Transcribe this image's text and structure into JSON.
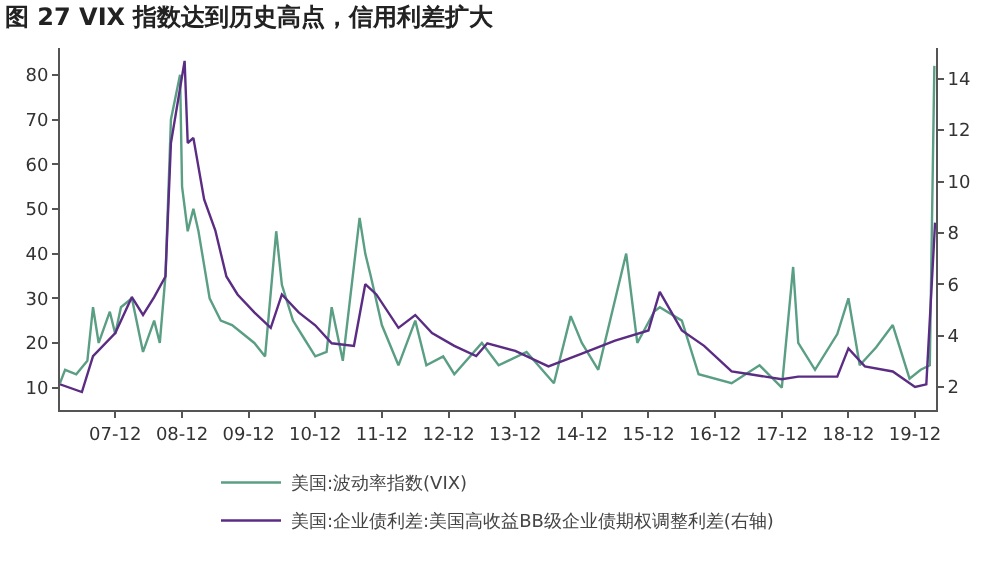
{
  "chart_data": {
    "type": "line",
    "title": "图 27 VIX 指数达到历史高点，信用利差扩大",
    "xlim": [
      "2007-02-01",
      "2020-03-25"
    ],
    "xticks": [
      {
        "value": "2007-12",
        "label": "07-12"
      },
      {
        "value": "2008-12",
        "label": "08-12"
      },
      {
        "value": "2009-12",
        "label": "09-12"
      },
      {
        "value": "2010-12",
        "label": "10-12"
      },
      {
        "value": "2011-12",
        "label": "11-12"
      },
      {
        "value": "2012-12",
        "label": "12-12"
      },
      {
        "value": "2013-12",
        "label": "13-12"
      },
      {
        "value": "2014-12",
        "label": "14-12"
      },
      {
        "value": "2015-12",
        "label": "15-12"
      },
      {
        "value": "2016-12",
        "label": "16-12"
      },
      {
        "value": "2017-12",
        "label": "17-12"
      },
      {
        "value": "2018-12",
        "label": "18-12"
      },
      {
        "value": "2019-12",
        "label": "19-12"
      }
    ],
    "ylim": [
      5,
      86
    ],
    "yticks": [
      10,
      20,
      30,
      40,
      50,
      60,
      70,
      80
    ],
    "y2lim": [
      1.1,
      15.2
    ],
    "y2ticks": [
      2,
      4,
      6,
      8,
      10,
      12,
      14
    ],
    "grid": false,
    "legend": "bottom",
    "marker": "none",
    "line_style": "solid",
    "series": [
      {
        "name": "美国:波动率指数(VIX)",
        "color": "#5a9e84",
        "x": [
          "2007-02",
          "2007-03",
          "2007-05",
          "2007-07",
          "2007-08",
          "2007-09",
          "2007-11",
          "2007-12",
          "2008-01",
          "2008-03",
          "2008-05",
          "2008-07",
          "2008-08",
          "2008-09",
          "2008-10",
          "2008-11-20",
          "2008-12",
          "2009-01",
          "2009-02",
          "2009-03",
          "2009-05",
          "2009-07",
          "2009-09",
          "2009-11",
          "2010-01",
          "2010-03",
          "2010-05",
          "2010-06",
          "2010-08",
          "2010-10",
          "2010-12",
          "2011-02",
          "2011-03",
          "2011-05",
          "2011-08",
          "2011-09",
          "2011-10",
          "2011-12",
          "2012-03",
          "2012-06",
          "2012-08",
          "2012-11",
          "2013-01",
          "2013-06",
          "2013-09",
          "2014-02",
          "2014-07",
          "2014-10",
          "2014-12",
          "2015-03",
          "2015-08",
          "2015-10",
          "2016-01",
          "2016-02",
          "2016-06",
          "2016-09",
          "2017-03",
          "2017-08",
          "2017-12",
          "2018-02",
          "2018-03",
          "2018-06",
          "2018-10",
          "2018-12",
          "2019-02",
          "2019-05",
          "2019-08",
          "2019-11",
          "2020-01",
          "2020-02-20",
          "2020-03-16"
        ],
        "values": [
          11,
          14,
          13,
          16,
          28,
          20,
          27,
          22,
          28,
          30,
          18,
          25,
          20,
          35,
          70,
          80,
          55,
          45,
          50,
          45,
          30,
          25,
          24,
          22,
          20,
          17,
          45,
          33,
          25,
          21,
          17,
          18,
          28,
          16,
          48,
          40,
          35,
          24,
          15,
          25,
          15,
          17,
          13,
          20,
          15,
          18,
          11,
          26,
          20,
          14,
          40,
          20,
          27,
          28,
          25,
          13,
          11,
          15,
          10,
          37,
          20,
          14,
          22,
          30,
          15,
          19,
          24,
          12,
          14,
          15,
          82
        ]
      },
      {
        "name": "美国:企业债利差:美国高收益BB级企业债期权调整利差(右轴)",
        "color": "#5b2c83",
        "axis": "y2",
        "x": [
          "2007-02",
          "2007-06",
          "2007-08",
          "2007-12",
          "2008-03",
          "2008-05",
          "2008-07",
          "2008-09",
          "2008-10",
          "2008-12-15",
          "2009-01",
          "2009-02",
          "2009-04",
          "2009-06",
          "2009-08",
          "2009-10",
          "2010-01",
          "2010-04",
          "2010-06",
          "2010-09",
          "2010-12",
          "2011-03",
          "2011-07",
          "2011-09",
          "2011-11",
          "2012-03",
          "2012-06",
          "2012-09",
          "2013-01",
          "2013-05",
          "2013-07",
          "2013-12",
          "2014-06",
          "2014-12",
          "2015-06",
          "2015-12",
          "2016-02",
          "2016-06",
          "2016-10",
          "2017-03",
          "2017-06",
          "2017-12",
          "2018-03",
          "2018-10",
          "2018-12",
          "2019-03",
          "2019-08",
          "2019-12",
          "2020-02",
          "2020-03-20"
        ],
        "values": [
          2.1,
          1.8,
          3.2,
          4.1,
          5.5,
          4.8,
          5.5,
          6.3,
          11.5,
          14.7,
          11.5,
          11.7,
          9.3,
          8.1,
          6.3,
          5.6,
          4.9,
          4.3,
          5.6,
          4.9,
          4.4,
          3.7,
          3.6,
          6.0,
          5.6,
          4.3,
          4.8,
          4.1,
          3.6,
          3.2,
          3.7,
          3.4,
          2.8,
          3.3,
          3.8,
          4.2,
          5.7,
          4.2,
          3.6,
          2.6,
          2.5,
          2.3,
          2.4,
          2.4,
          3.5,
          2.8,
          2.6,
          2.0,
          2.1,
          8.4
        ]
      }
    ]
  }
}
